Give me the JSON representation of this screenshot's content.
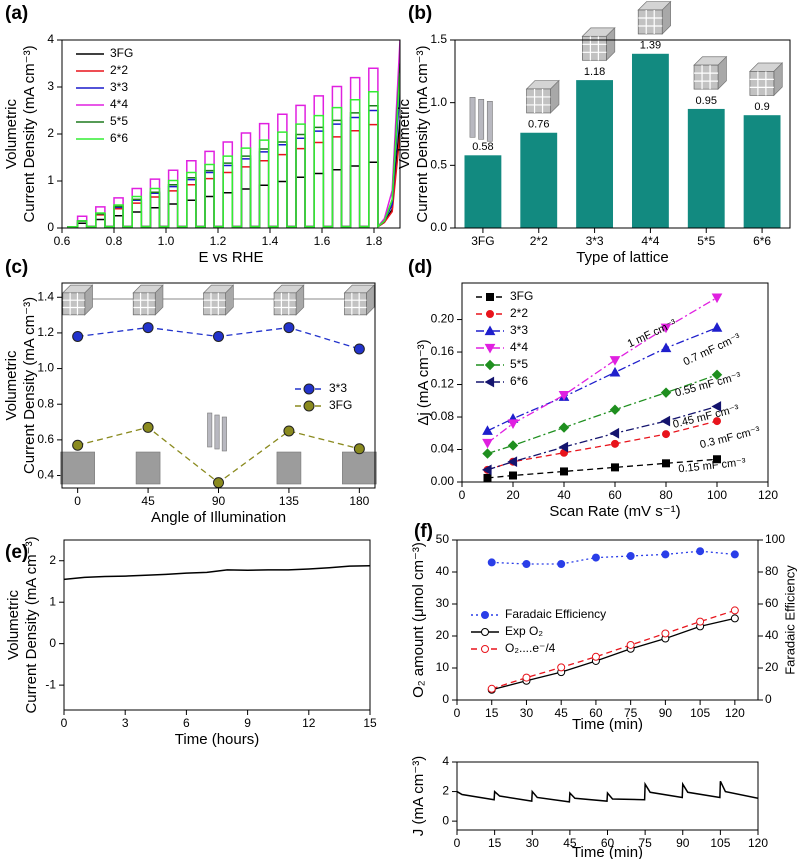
{
  "chart_data": [
    {
      "type": "line",
      "panel_label": "(a)",
      "xlabel": "E vs RHE",
      "ylabel": [
        "Volumetric",
        "Current Density (mA cm⁻³)"
      ],
      "xlim": [
        0.6,
        1.9
      ],
      "xticks": [
        0.6,
        0.8,
        {
          "value": 1,
          "label": "1.0"
        },
        1.2,
        1.4,
        1.6,
        1.8
      ],
      "ylim": [
        0,
        4
      ],
      "yticks": [
        0,
        1,
        2,
        3,
        4
      ],
      "legend": "upper left",
      "x": [
        0.62,
        0.66,
        0.66,
        0.695,
        0.695,
        0.73,
        0.73,
        0.765,
        0.765,
        0.8,
        0.8,
        0.835,
        0.835,
        0.87,
        0.87,
        0.905,
        0.905,
        0.94,
        0.94,
        0.975,
        0.975,
        1.01,
        1.01,
        1.045,
        1.045,
        1.08,
        1.08,
        1.115,
        1.115,
        1.15,
        1.15,
        1.185,
        1.185,
        1.22,
        1.22,
        1.255,
        1.255,
        1.29,
        1.29,
        1.325,
        1.325,
        1.36,
        1.36,
        1.395,
        1.395,
        1.43,
        1.43,
        1.465,
        1.465,
        1.5,
        1.5,
        1.535,
        1.535,
        1.57,
        1.57,
        1.605,
        1.605,
        1.64,
        1.64,
        1.675,
        1.675,
        1.71,
        1.71,
        1.745,
        1.745,
        1.78,
        1.78,
        1.815,
        1.815,
        1.84,
        1.87,
        1.9
      ],
      "series": [
        {
          "name": "3FG",
          "color": "#000000",
          "values": [
            0.02,
            0.03,
            0.1,
            0.1,
            0.03,
            0.03,
            0.18,
            0.18,
            0.03,
            0.03,
            0.26,
            0.26,
            0.03,
            0.03,
            0.34,
            0.34,
            0.03,
            0.03,
            0.43,
            0.43,
            0.03,
            0.03,
            0.51,
            0.51,
            0.03,
            0.03,
            0.59,
            0.59,
            0.03,
            0.03,
            0.67,
            0.67,
            0.03,
            0.03,
            0.75,
            0.75,
            0.03,
            0.03,
            0.83,
            0.83,
            0.03,
            0.03,
            0.91,
            0.91,
            0.03,
            0.03,
            0.99,
            0.99,
            0.03,
            0.03,
            1.08,
            1.08,
            0.03,
            0.03,
            1.16,
            1.16,
            0.03,
            0.03,
            1.24,
            1.24,
            0.03,
            0.03,
            1.32,
            1.32,
            0.03,
            0.03,
            1.4,
            1.4,
            0.03,
            0.12,
            0.4,
            2.3
          ]
        },
        {
          "name": "2*2",
          "color": "#e8141c",
          "values": [
            0.02,
            0.03,
            0.15,
            0.15,
            0.03,
            0.03,
            0.28,
            0.28,
            0.03,
            0.03,
            0.41,
            0.41,
            0.03,
            0.03,
            0.53,
            0.53,
            0.03,
            0.03,
            0.66,
            0.66,
            0.03,
            0.03,
            0.79,
            0.79,
            0.03,
            0.03,
            0.92,
            0.92,
            0.03,
            0.03,
            1.05,
            1.05,
            0.03,
            0.03,
            1.18,
            1.18,
            0.03,
            0.03,
            1.3,
            1.3,
            0.03,
            0.03,
            1.43,
            1.43,
            0.03,
            0.03,
            1.56,
            1.56,
            0.03,
            0.03,
            1.69,
            1.69,
            0.03,
            0.03,
            1.82,
            1.82,
            0.03,
            0.03,
            1.94,
            1.94,
            0.03,
            0.03,
            2.07,
            2.07,
            0.03,
            0.03,
            2.2,
            2.2,
            0.03,
            0.12,
            0.35,
            2.0
          ]
        },
        {
          "name": "3*3",
          "color": "#1a1acc",
          "values": [
            0.02,
            0.03,
            0.15,
            0.15,
            0.03,
            0.03,
            0.3,
            0.3,
            0.03,
            0.03,
            0.44,
            0.44,
            0.03,
            0.03,
            0.59,
            0.59,
            0.03,
            0.03,
            0.74,
            0.74,
            0.03,
            0.03,
            0.88,
            0.88,
            0.03,
            0.03,
            1.03,
            1.03,
            0.03,
            0.03,
            1.18,
            1.18,
            0.03,
            0.03,
            1.33,
            1.33,
            0.03,
            0.03,
            1.47,
            1.47,
            0.03,
            0.03,
            1.62,
            1.62,
            0.03,
            0.03,
            1.77,
            1.77,
            0.03,
            0.03,
            1.91,
            1.91,
            0.03,
            0.03,
            2.06,
            2.06,
            0.03,
            0.03,
            2.21,
            2.21,
            0.03,
            0.03,
            2.35,
            2.35,
            0.03,
            0.03,
            2.5,
            2.5,
            0.03,
            0.15,
            0.5,
            3.0
          ]
        },
        {
          "name": "4*4",
          "color": "#e020e0",
          "values": [
            0.02,
            0.03,
            0.25,
            0.25,
            0.03,
            0.03,
            0.45,
            0.45,
            0.03,
            0.03,
            0.64,
            0.64,
            0.03,
            0.03,
            0.84,
            0.84,
            0.03,
            0.03,
            1.04,
            1.04,
            0.03,
            0.03,
            1.23,
            1.23,
            0.03,
            0.03,
            1.43,
            1.43,
            0.03,
            0.03,
            1.63,
            1.63,
            0.03,
            0.03,
            1.83,
            1.83,
            0.03,
            0.03,
            2.02,
            2.02,
            0.03,
            0.03,
            2.22,
            2.22,
            0.03,
            0.03,
            2.42,
            2.42,
            0.03,
            0.03,
            2.61,
            2.61,
            0.03,
            0.03,
            2.81,
            2.81,
            0.03,
            0.03,
            3.01,
            3.01,
            0.03,
            0.03,
            3.2,
            3.2,
            0.03,
            0.03,
            3.4,
            3.4,
            0.03,
            0.2,
            0.8,
            4.0
          ]
        },
        {
          "name": "5*5",
          "color": "#1e7a1e",
          "values": [
            0.02,
            0.03,
            0.15,
            0.15,
            0.03,
            0.03,
            0.3,
            0.3,
            0.03,
            0.03,
            0.46,
            0.46,
            0.03,
            0.03,
            0.61,
            0.61,
            0.03,
            0.03,
            0.76,
            0.76,
            0.03,
            0.03,
            0.92,
            0.92,
            0.03,
            0.03,
            1.07,
            1.07,
            0.03,
            0.03,
            1.22,
            1.22,
            0.03,
            0.03,
            1.38,
            1.38,
            0.03,
            0.03,
            1.53,
            1.53,
            0.03,
            0.03,
            1.68,
            1.68,
            0.03,
            0.03,
            1.83,
            1.83,
            0.03,
            0.03,
            1.99,
            1.99,
            0.03,
            0.03,
            2.14,
            2.14,
            0.03,
            0.03,
            2.29,
            2.29,
            0.03,
            0.03,
            2.45,
            2.45,
            0.03,
            0.03,
            2.6,
            2.6,
            0.03,
            0.15,
            0.6,
            3.5
          ]
        },
        {
          "name": "6*6",
          "color": "#33ee33",
          "values": [
            0.02,
            0.03,
            0.15,
            0.15,
            0.03,
            0.03,
            0.32,
            0.32,
            0.03,
            0.03,
            0.49,
            0.49,
            0.03,
            0.03,
            0.67,
            0.67,
            0.03,
            0.03,
            0.84,
            0.84,
            0.03,
            0.03,
            1.01,
            1.01,
            0.03,
            0.03,
            1.18,
            1.18,
            0.03,
            0.03,
            1.35,
            1.35,
            0.03,
            0.03,
            1.53,
            1.53,
            0.03,
            0.03,
            1.7,
            1.7,
            0.03,
            0.03,
            1.87,
            1.87,
            0.03,
            0.03,
            2.04,
            2.04,
            0.03,
            0.03,
            2.21,
            2.21,
            0.03,
            0.03,
            2.39,
            2.39,
            0.03,
            0.03,
            2.56,
            2.56,
            0.03,
            0.03,
            2.73,
            2.73,
            0.03,
            0.03,
            2.9,
            2.9,
            0.03,
            0.15,
            0.6,
            3.3
          ]
        }
      ]
    },
    {
      "type": "bar",
      "panel_label": "(b)",
      "xlabel": "Type of lattice",
      "ylabel": [
        "Volumetric",
        "Current Density (mA cm⁻³)"
      ],
      "categories": [
        "3FG",
        "2*2",
        "3*3",
        "4*4",
        "5*5",
        "6*6"
      ],
      "values": [
        0.58,
        0.76,
        1.18,
        1.39,
        0.95,
        0.9
      ],
      "color": "#128a80",
      "ylim": [
        0,
        1.5
      ],
      "yticks": [
        {
          "value": 0,
          "label": "0.0"
        },
        0.5,
        {
          "value": 1,
          "label": "1.0"
        },
        1.5
      ]
    },
    {
      "type": "line",
      "panel_label": "(c)",
      "xlabel": "Angle of Illumination",
      "ylabel": [
        "Volumetric",
        "Current Density (mA cm⁻³)"
      ],
      "x": [
        0,
        45,
        90,
        135,
        180
      ],
      "xlim": [
        -10,
        190
      ],
      "xticks": [
        0,
        45,
        90,
        135,
        180
      ],
      "ylim": [
        0.33,
        1.48
      ],
      "yticks": [
        0.4,
        0.6,
        0.8,
        {
          "value": 1,
          "label": "1.0"
        },
        1.2,
        1.4
      ],
      "legend": "center right",
      "series": [
        {
          "name": "3*3",
          "color": "#2233cc",
          "marker": "sphere",
          "dash": "dashed",
          "values": [
            1.18,
            1.23,
            1.18,
            1.23,
            1.11
          ]
        },
        {
          "name": "3FG",
          "color": "#8a8a1e",
          "marker": "sphere",
          "dash": "dashed",
          "values": [
            0.57,
            0.67,
            0.36,
            0.65,
            0.55
          ]
        }
      ]
    },
    {
      "type": "line",
      "panel_label": "(d)",
      "xlabel": "Scan Rate (mV s⁻¹)",
      "ylabel": "Δj (mA cm⁻³)",
      "x": [
        10,
        20,
        40,
        60,
        80,
        100
      ],
      "xlim": [
        0,
        120
      ],
      "xticks": [
        0,
        20,
        40,
        60,
        80,
        100,
        120
      ],
      "ylim": [
        0,
        0.245
      ],
      "yticks": [
        {
          "value": 0,
          "label": "0.00"
        },
        0.04,
        0.08,
        0.12,
        0.16,
        {
          "value": 0.2,
          "label": "0.20"
        }
      ],
      "legend": "upper left",
      "annotations": [
        "1 mF cm⁻³",
        "0.7 mF cm⁻³",
        "0.55 mF cm⁻³",
        "0.45 mF cm⁻³",
        "0.3 mF cm⁻³",
        "0.15 mF cm⁻³"
      ],
      "series": [
        {
          "name": "3FG",
          "color": "#000000",
          "marker": "square",
          "dash": "dashed",
          "values": [
            0.005,
            0.008,
            0.013,
            0.018,
            0.023,
            0.028
          ]
        },
        {
          "name": "2*2",
          "color": "#e8141c",
          "marker": "circle",
          "dash": "dashed",
          "values": [
            0.015,
            0.025,
            0.036,
            0.047,
            0.059,
            0.075
          ]
        },
        {
          "name": "3*3",
          "color": "#1f1fcc",
          "marker": "triangle-up",
          "dash": "dashdot",
          "values": [
            0.063,
            0.078,
            0.105,
            0.135,
            0.165,
            0.19
          ]
        },
        {
          "name": "4*4",
          "color": "#e020e0",
          "marker": "triangle-down",
          "dash": "dashdot",
          "values": [
            0.048,
            0.072,
            0.107,
            0.15,
            0.19,
            0.227
          ]
        },
        {
          "name": "5*5",
          "color": "#1f8f1f",
          "marker": "diamond",
          "dash": "dashdot",
          "values": [
            0.035,
            0.045,
            0.067,
            0.089,
            0.11,
            0.132
          ]
        },
        {
          "name": "6*6",
          "color": "#14146e",
          "marker": "triangle-left",
          "dash": "dashdot",
          "values": [
            0.015,
            0.025,
            0.043,
            0.06,
            0.075,
            0.093
          ]
        }
      ]
    },
    {
      "type": "line",
      "panel_label": "(e)",
      "xlabel": "Time (hours)",
      "ylabel": [
        "Volumetric",
        "Current Density (mA cm⁻³)"
      ],
      "x": [
        0,
        1,
        2,
        3,
        4,
        5,
        6,
        7,
        8,
        9,
        10,
        11,
        12,
        13,
        14,
        15
      ],
      "xlim": [
        0,
        15
      ],
      "xticks": [
        0,
        3,
        6,
        9,
        12,
        15
      ],
      "ylim": [
        -1.6,
        2.5
      ],
      "yticks": [
        -1,
        0,
        1,
        2
      ],
      "series": [
        {
          "color": "#000000",
          "values": [
            1.55,
            1.6,
            1.62,
            1.63,
            1.65,
            1.67,
            1.7,
            1.72,
            1.78,
            1.77,
            1.78,
            1.78,
            1.8,
            1.83,
            1.87,
            1.88
          ]
        }
      ]
    },
    {
      "type": "line",
      "panel_label": "(f)",
      "xlabel": "Time (min)",
      "ylabel": "O₂ amount (μmol cm⁻³)",
      "y2label": "Faradaic Efficiency",
      "x": [
        15,
        30,
        45,
        60,
        75,
        90,
        105,
        120
      ],
      "xlim": [
        0,
        130
      ],
      "xticks": [
        0,
        15,
        30,
        45,
        60,
        75,
        90,
        105,
        120
      ],
      "ylim": [
        0,
        50
      ],
      "yticks": [
        0,
        10,
        20,
        30,
        40,
        50
      ],
      "y2lim": [
        0,
        100
      ],
      "y2ticks": [
        0,
        20,
        40,
        60,
        80,
        100
      ],
      "legend": "center left",
      "series": [
        {
          "name": "Faradaic Efficiency",
          "color": "#2a3ee8",
          "marker": "circle",
          "dash": "dotted",
          "axis": "y2",
          "values": [
            86,
            85,
            85,
            89,
            90,
            91,
            93,
            91
          ]
        },
        {
          "name": "Exp O₂",
          "color": "#000000",
          "marker": "open-circle",
          "dash": "solid",
          "values": [
            3.2,
            6,
            8.7,
            12.2,
            16,
            19.2,
            23,
            25.5
          ]
        },
        {
          "name": "O₂....e⁻/4",
          "color": "#e8141c",
          "marker": "open-circle",
          "dash": "dashed",
          "values": [
            3.5,
            7,
            10.2,
            13.5,
            17.2,
            20.8,
            24.5,
            28
          ]
        }
      ]
    },
    {
      "type": "line",
      "xlabel": "Time (min)",
      "ylabel": "J (mA cm⁻³)",
      "x": [
        0,
        2,
        14.8,
        15,
        17,
        29.8,
        30,
        32,
        44.8,
        45,
        47,
        59.8,
        60,
        62,
        74.8,
        75,
        77,
        89.8,
        90,
        92,
        104.8,
        105,
        107,
        120
      ],
      "xlim": [
        0,
        120
      ],
      "xticks": [
        0,
        15,
        30,
        45,
        60,
        75,
        90,
        105,
        120
      ],
      "ylim": [
        -0.6,
        4
      ],
      "yticks": [
        0,
        2,
        4
      ],
      "series": [
        {
          "color": "#000000",
          "values": [
            2.0,
            1.8,
            1.45,
            2.0,
            1.7,
            1.35,
            2.0,
            1.6,
            1.3,
            1.9,
            1.55,
            1.35,
            1.9,
            1.5,
            1.45,
            2.5,
            1.95,
            1.6,
            2.5,
            1.95,
            1.6,
            2.7,
            2.0,
            1.55
          ]
        }
      ]
    }
  ]
}
